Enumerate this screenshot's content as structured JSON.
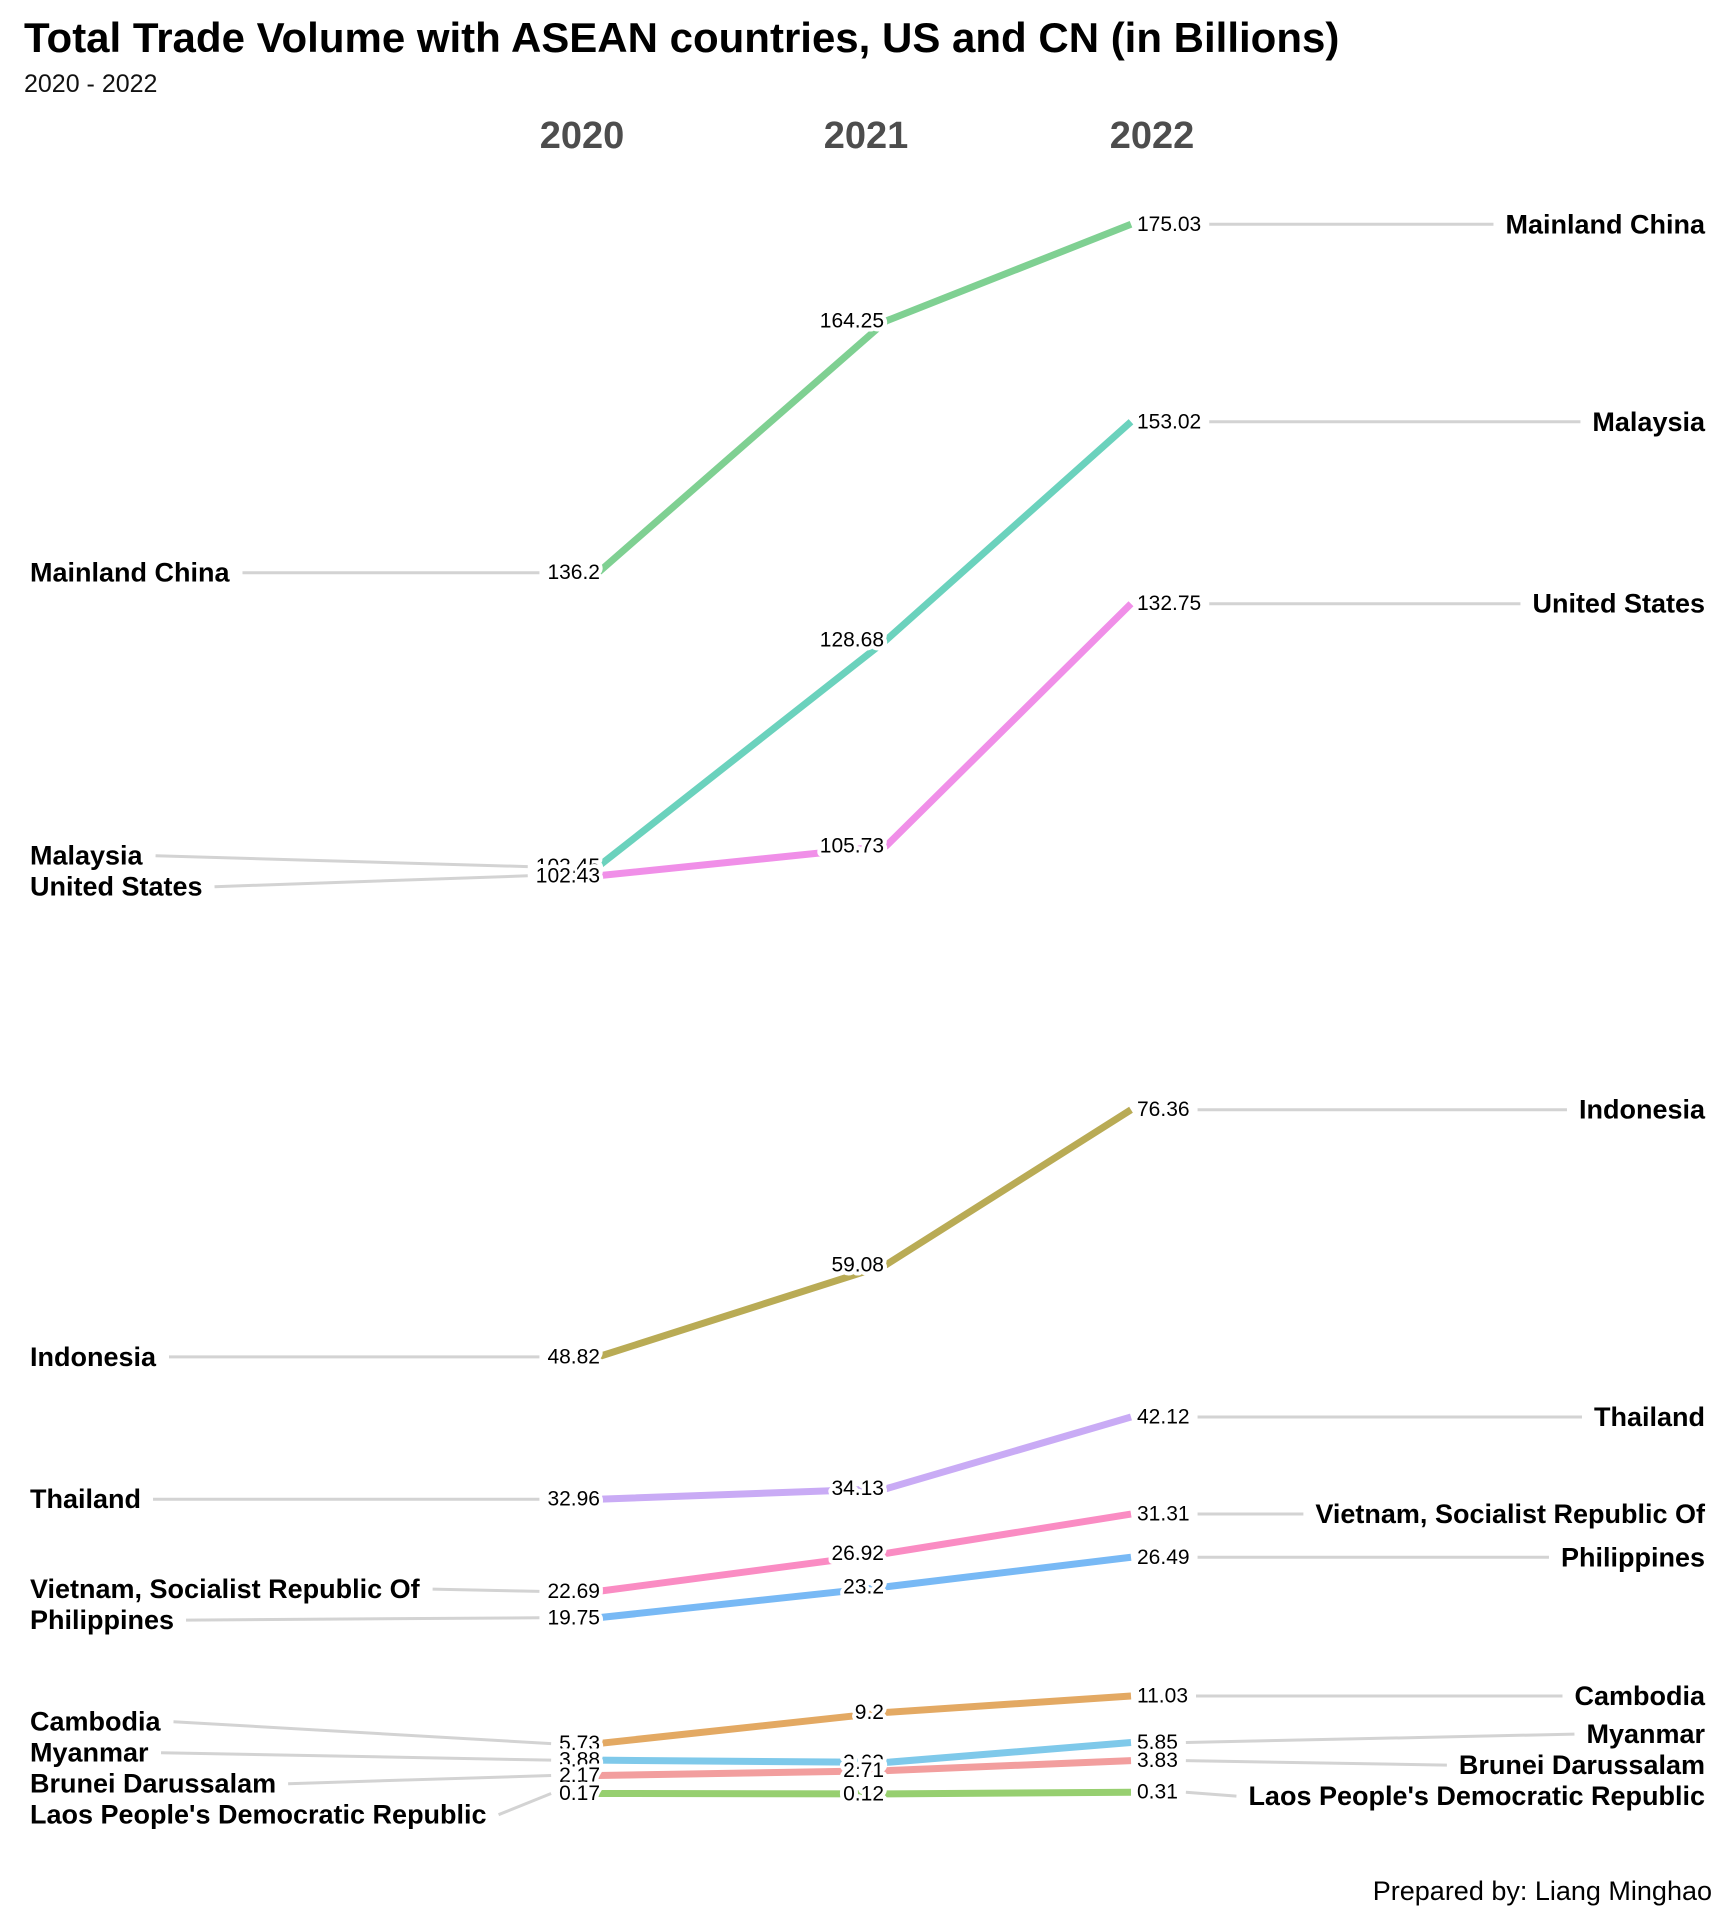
{
  "title": "Total Trade Volume with ASEAN countries, US and CN (in Billions)",
  "subtitle": "2020 - 2022",
  "footer": "Prepared by: Liang Minghao",
  "colors": {
    "leader_line": "#d3d3d3",
    "year_header_text": "#4d4d4d",
    "label_text": "#000000",
    "background": "#ffffff"
  },
  "chart_data": {
    "type": "line",
    "variant": "slope-chart",
    "x": [
      "2020",
      "2021",
      "2022"
    ],
    "xlabel": "",
    "ylabel": "",
    "ylim": [
      0,
      180
    ],
    "grid": false,
    "legend_position": "labels-left-and-right",
    "series": [
      {
        "name": "Mainland China",
        "color": "#7fd092",
        "values": [
          136.2,
          164.25,
          175.03
        ]
      },
      {
        "name": "Malaysia",
        "color": "#6bd2bd",
        "values": [
          103.45,
          128.68,
          153.02
        ]
      },
      {
        "name": "United States",
        "color": "#f08fe8",
        "values": [
          102.43,
          105.73,
          132.75
        ]
      },
      {
        "name": "Indonesia",
        "color": "#b9ab55",
        "values": [
          48.82,
          59.08,
          76.36
        ]
      },
      {
        "name": "Thailand",
        "color": "#c9abf5",
        "values": [
          32.96,
          34.13,
          42.12
        ]
      },
      {
        "name": "Vietnam, Socialist Republic Of",
        "color": "#fa8cc3",
        "values": [
          22.69,
          26.92,
          31.31
        ]
      },
      {
        "name": "Philippines",
        "color": "#78b9f5",
        "values": [
          19.75,
          23.2,
          26.49
        ]
      },
      {
        "name": "Cambodia",
        "color": "#e3a963",
        "values": [
          5.73,
          9.2,
          11.03
        ]
      },
      {
        "name": "Myanmar",
        "color": "#7fc9ea",
        "values": [
          3.88,
          3.63,
          5.85
        ]
      },
      {
        "name": "Brunei Darussalam",
        "color": "#f29e9e",
        "values": [
          2.17,
          2.71,
          3.83
        ]
      },
      {
        "name": "Laos People's Democratic Republic",
        "color": "#97cf70",
        "values": [
          0.17,
          0.12,
          0.31
        ]
      }
    ]
  }
}
